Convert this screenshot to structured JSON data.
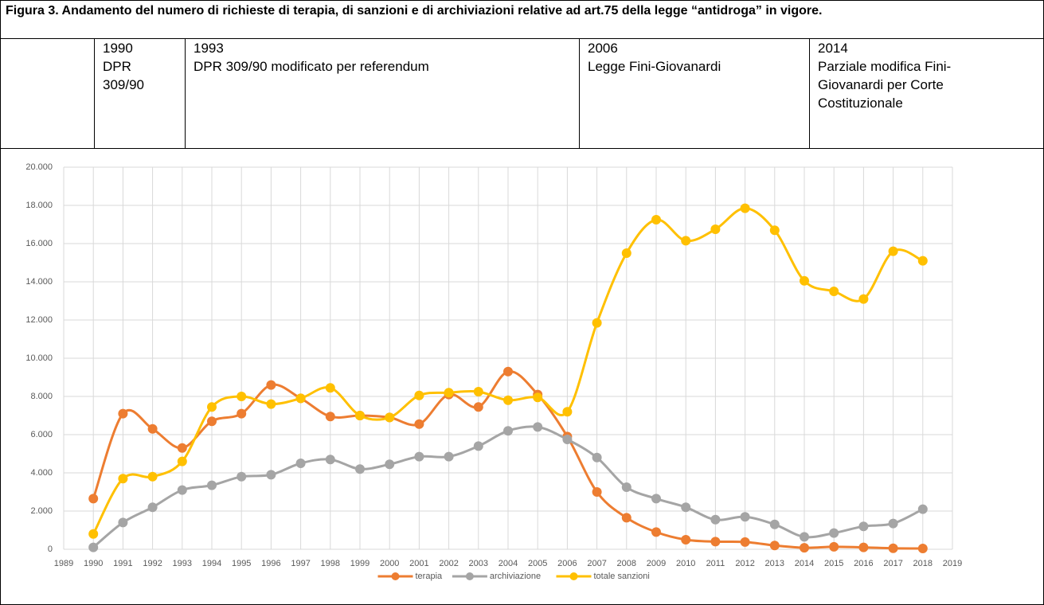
{
  "header": {
    "title": "Figura 3. Andamento del numero di richieste di terapia, di sanzioni e di archiviazioni relative ad art.75 della legge “antidroga” in vigore.",
    "periods": [
      {
        "year": "1990",
        "lines": [
          "DPR",
          "309/90"
        ]
      },
      {
        "year": "1993",
        "lines": [
          "DPR 309/90 modificato per referendum"
        ]
      },
      {
        "year": "2006",
        "lines": [
          "Legge Fini-Giovanardi"
        ]
      },
      {
        "year": "2014",
        "lines": [
          "Parziale modifica Fini-",
          "Giovanardi per Corte",
          "Costituzionale"
        ]
      }
    ]
  },
  "chart_data": {
    "type": "line",
    "x": [
      1990,
      1991,
      1992,
      1993,
      1994,
      1995,
      1996,
      1997,
      1998,
      1999,
      2000,
      2001,
      2002,
      2003,
      2004,
      2005,
      2006,
      2007,
      2008,
      2009,
      2010,
      2011,
      2012,
      2013,
      2014,
      2015,
      2016,
      2017,
      2018
    ],
    "series": [
      {
        "name": "terapia",
        "color": "#ed7d31",
        "values": [
          2650,
          7100,
          6300,
          5300,
          6700,
          7100,
          8600,
          7900,
          6950,
          7000,
          6900,
          6550,
          8100,
          7450,
          9300,
          8100,
          5900,
          3000,
          1650,
          900,
          500,
          400,
          380,
          200,
          80,
          130,
          100,
          50,
          40
        ]
      },
      {
        "name": "archiviazione",
        "color": "#a5a5a5",
        "values": [
          100,
          1400,
          2200,
          3100,
          3350,
          3800,
          3900,
          4500,
          4700,
          4200,
          4450,
          4850,
          4850,
          5400,
          6200,
          6400,
          5750,
          4800,
          3250,
          2650,
          2200,
          1550,
          1700,
          1300,
          650,
          850,
          1200,
          1350,
          2100
        ]
      },
      {
        "name": "totale sanzioni",
        "color": "#ffc000",
        "values": [
          800,
          3700,
          3800,
          4600,
          7450,
          8000,
          7600,
          7900,
          8450,
          7000,
          6900,
          8050,
          8200,
          8250,
          7800,
          7950,
          7200,
          11850,
          15500,
          17250,
          16150,
          16750,
          17850,
          16700,
          14050,
          13500,
          13100,
          15600,
          15100
        ]
      }
    ],
    "xlim": [
      1989,
      2019
    ],
    "xticks": [
      1989,
      1990,
      1991,
      1992,
      1993,
      1994,
      1995,
      1996,
      1997,
      1998,
      1999,
      2000,
      2001,
      2002,
      2003,
      2004,
      2005,
      2006,
      2007,
      2008,
      2009,
      2010,
      2011,
      2012,
      2013,
      2014,
      2015,
      2016,
      2017,
      2018,
      2019
    ],
    "ylim": [
      0,
      20000
    ],
    "yticks": [
      0,
      {
        "value": 2000,
        "label": "2.000"
      },
      {
        "value": 4000,
        "label": "4.000"
      },
      {
        "value": 6000,
        "label": "6.000"
      },
      {
        "value": 8000,
        "label": "8.000"
      },
      {
        "value": 10000,
        "label": "10.000"
      },
      {
        "value": 12000,
        "label": "12.000"
      },
      {
        "value": 14000,
        "label": "14.000"
      },
      {
        "value": 16000,
        "label": "16.000"
      },
      {
        "value": 18000,
        "label": "18.000"
      },
      {
        "value": 20000,
        "label": "20.000"
      }
    ],
    "grid": true,
    "legend": "bottom"
  }
}
